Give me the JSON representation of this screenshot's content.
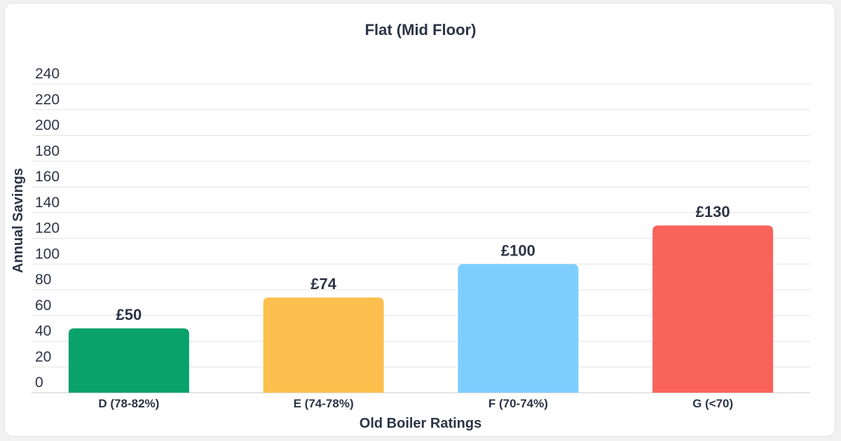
{
  "chart_data": {
    "type": "bar",
    "title": "Flat (Mid Floor)",
    "xlabel": "Old Boiler Ratings",
    "ylabel": "Annual Savings",
    "categories": [
      "D (78-82%)",
      "E (74-78%)",
      "F (70-74%)",
      "G (<70)"
    ],
    "values": [
      50,
      74,
      100,
      130
    ],
    "data_labels": [
      "£50",
      "£74",
      "£100",
      "£130"
    ],
    "colors": [
      "#0aa26b",
      "#fdc04f",
      "#7ecefd",
      "#f9635b"
    ],
    "ylim": [
      0,
      240
    ],
    "yticks": [
      "0",
      "20",
      "40",
      "60",
      "80",
      "100",
      "120",
      "140",
      "160",
      "180",
      "200",
      "220",
      "240"
    ],
    "grid": true,
    "legend": "none"
  }
}
